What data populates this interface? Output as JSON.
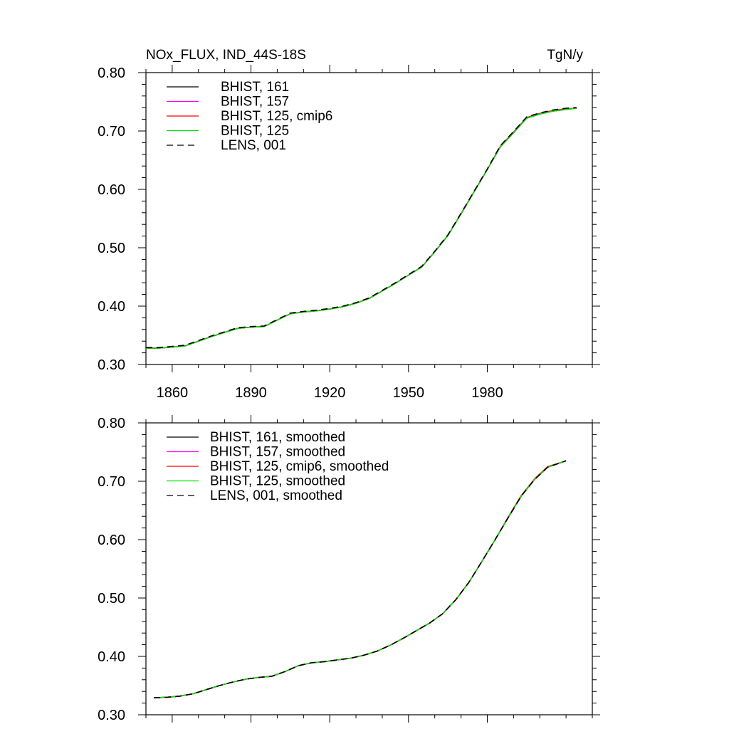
{
  "chart_data": [
    {
      "type": "line",
      "title": "NOx_FLUX, IND_44S-18S",
      "units": "TgN/y",
      "xlim": [
        1850,
        2020
      ],
      "ylim": [
        0.3,
        0.8
      ],
      "xticks": [
        1860,
        1890,
        1920,
        1950,
        1980
      ],
      "yticks": [
        0.3,
        0.4,
        0.5,
        0.6,
        0.7,
        0.8
      ],
      "xtick_labels": [
        "1860",
        "1890",
        "1920",
        "1950",
        "1980"
      ],
      "ytick_labels": [
        "0.30",
        "0.40",
        "0.50",
        "0.60",
        "0.70",
        "0.80"
      ],
      "legend_position": "top-left",
      "x": [
        1850,
        1855,
        1860,
        1865,
        1870,
        1875,
        1880,
        1885,
        1890,
        1895,
        1900,
        1905,
        1910,
        1915,
        1920,
        1925,
        1930,
        1935,
        1940,
        1945,
        1950,
        1955,
        1960,
        1965,
        1970,
        1975,
        1980,
        1985,
        1990,
        1995,
        2000,
        2005,
        2010,
        2014
      ],
      "series": [
        {
          "name": "BHIST, 161",
          "color": "#000000",
          "dash": "solid",
          "values": [
            0.328,
            0.328,
            0.33,
            0.332,
            0.34,
            0.348,
            0.355,
            0.362,
            0.364,
            0.365,
            0.376,
            0.387,
            0.39,
            0.392,
            0.395,
            0.399,
            0.405,
            0.413,
            0.426,
            0.439,
            0.453,
            0.467,
            0.493,
            0.521,
            0.558,
            0.596,
            0.634,
            0.673,
            0.697,
            0.722,
            0.729,
            0.734,
            0.737,
            0.739
          ]
        },
        {
          "name": "BHIST, 157",
          "color": "#ff00ff",
          "dash": "solid",
          "values": [
            0.328,
            0.328,
            0.33,
            0.332,
            0.34,
            0.348,
            0.355,
            0.362,
            0.364,
            0.365,
            0.376,
            0.387,
            0.39,
            0.392,
            0.395,
            0.399,
            0.405,
            0.413,
            0.426,
            0.439,
            0.453,
            0.467,
            0.493,
            0.521,
            0.558,
            0.596,
            0.634,
            0.673,
            0.697,
            0.722,
            0.729,
            0.734,
            0.737,
            0.739
          ]
        },
        {
          "name": "BHIST, 125, cmip6",
          "color": "#ff0000",
          "dash": "solid",
          "values": [
            0.328,
            0.328,
            0.33,
            0.332,
            0.34,
            0.348,
            0.355,
            0.362,
            0.364,
            0.365,
            0.376,
            0.387,
            0.39,
            0.392,
            0.395,
            0.399,
            0.405,
            0.413,
            0.426,
            0.439,
            0.453,
            0.467,
            0.493,
            0.521,
            0.558,
            0.596,
            0.634,
            0.674,
            0.698,
            0.723,
            0.73,
            0.735,
            0.738,
            0.739
          ]
        },
        {
          "name": "BHIST, 125",
          "color": "#00e000",
          "dash": "solid",
          "values": [
            0.328,
            0.328,
            0.33,
            0.332,
            0.34,
            0.348,
            0.355,
            0.362,
            0.364,
            0.365,
            0.376,
            0.387,
            0.39,
            0.392,
            0.395,
            0.399,
            0.405,
            0.413,
            0.426,
            0.439,
            0.453,
            0.467,
            0.493,
            0.521,
            0.558,
            0.596,
            0.634,
            0.673,
            0.697,
            0.722,
            0.729,
            0.734,
            0.737,
            0.739
          ]
        },
        {
          "name": "LENS, 001",
          "color": "#000000",
          "dash": "dashed",
          "values": [
            0.329,
            0.329,
            0.331,
            0.333,
            0.341,
            0.349,
            0.356,
            0.363,
            0.365,
            0.366,
            0.377,
            0.388,
            0.391,
            0.393,
            0.396,
            0.4,
            0.406,
            0.414,
            0.427,
            0.44,
            0.454,
            0.468,
            0.494,
            0.522,
            0.559,
            0.597,
            0.635,
            0.675,
            0.699,
            0.724,
            0.731,
            0.736,
            0.739,
            0.74
          ]
        }
      ]
    },
    {
      "type": "line",
      "title": "",
      "units": "",
      "xlim": [
        1850,
        2020
      ],
      "ylim": [
        0.3,
        0.8
      ],
      "xticks": [
        1860,
        1890,
        1920,
        1950,
        1980
      ],
      "yticks": [
        0.3,
        0.4,
        0.5,
        0.6,
        0.7,
        0.8
      ],
      "xtick_labels": [],
      "ytick_labels": [
        "0.30",
        "0.40",
        "0.50",
        "0.60",
        "0.70",
        "0.80"
      ],
      "legend_position": "top-left",
      "x": [
        1853,
        1858,
        1863,
        1868,
        1873,
        1878,
        1883,
        1888,
        1893,
        1898,
        1903,
        1908,
        1913,
        1918,
        1923,
        1928,
        1933,
        1938,
        1943,
        1948,
        1953,
        1958,
        1963,
        1968,
        1973,
        1978,
        1983,
        1988,
        1993,
        1998,
        2003,
        2010
      ],
      "series": [
        {
          "name": "BHIST, 161, smoothed",
          "color": "#000000",
          "dash": "solid",
          "values": [
            0.329,
            0.33,
            0.332,
            0.336,
            0.343,
            0.35,
            0.356,
            0.361,
            0.364,
            0.366,
            0.374,
            0.384,
            0.389,
            0.391,
            0.394,
            0.397,
            0.402,
            0.409,
            0.419,
            0.431,
            0.444,
            0.457,
            0.473,
            0.497,
            0.527,
            0.563,
            0.6,
            0.638,
            0.675,
            0.703,
            0.724,
            0.735
          ]
        },
        {
          "name": "BHIST, 157, smoothed",
          "color": "#ff00ff",
          "dash": "solid",
          "values": [
            0.329,
            0.33,
            0.332,
            0.336,
            0.343,
            0.35,
            0.356,
            0.361,
            0.364,
            0.366,
            0.374,
            0.384,
            0.389,
            0.391,
            0.394,
            0.397,
            0.402,
            0.409,
            0.419,
            0.431,
            0.444,
            0.457,
            0.473,
            0.497,
            0.527,
            0.563,
            0.6,
            0.638,
            0.675,
            0.703,
            0.724,
            0.735
          ]
        },
        {
          "name": "BHIST, 125, cmip6, smoothed",
          "color": "#ff0000",
          "dash": "solid",
          "values": [
            0.329,
            0.33,
            0.332,
            0.336,
            0.343,
            0.35,
            0.356,
            0.361,
            0.364,
            0.366,
            0.374,
            0.384,
            0.389,
            0.391,
            0.394,
            0.397,
            0.402,
            0.409,
            0.419,
            0.431,
            0.444,
            0.457,
            0.473,
            0.497,
            0.527,
            0.563,
            0.6,
            0.639,
            0.676,
            0.704,
            0.725,
            0.735
          ]
        },
        {
          "name": "BHIST, 125, smoothed",
          "color": "#00e000",
          "dash": "solid",
          "values": [
            0.329,
            0.33,
            0.332,
            0.336,
            0.343,
            0.35,
            0.356,
            0.361,
            0.364,
            0.366,
            0.374,
            0.384,
            0.389,
            0.391,
            0.394,
            0.397,
            0.402,
            0.409,
            0.419,
            0.431,
            0.444,
            0.457,
            0.473,
            0.497,
            0.527,
            0.563,
            0.6,
            0.638,
            0.675,
            0.703,
            0.724,
            0.735
          ]
        },
        {
          "name": "LENS, 001, smoothed",
          "color": "#000000",
          "dash": "dashed",
          "values": [
            0.329,
            0.33,
            0.332,
            0.336,
            0.343,
            0.35,
            0.356,
            0.361,
            0.364,
            0.366,
            0.374,
            0.384,
            0.389,
            0.391,
            0.394,
            0.397,
            0.402,
            0.409,
            0.419,
            0.431,
            0.444,
            0.457,
            0.473,
            0.497,
            0.527,
            0.563,
            0.6,
            0.638,
            0.675,
            0.703,
            0.724,
            0.735
          ]
        }
      ]
    }
  ]
}
